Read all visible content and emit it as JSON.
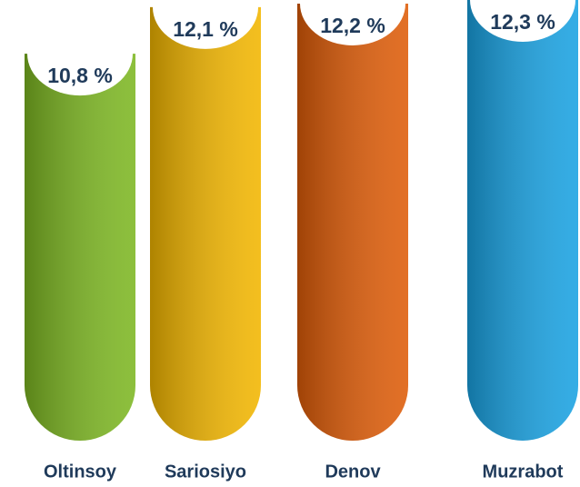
{
  "chart_data": {
    "type": "bar",
    "categories": [
      "Oltinsoy",
      "Sariosiyo",
      "Denov",
      "Muzrabot"
    ],
    "values": [
      10.8,
      12.1,
      12.2,
      12.3
    ],
    "value_labels": [
      "10,8 %",
      "12,1 %",
      "12,2 %",
      "12,3 %"
    ],
    "colors": [
      "#7db722",
      "#f2b600",
      "#de5c08",
      "#19a2e2"
    ]
  }
}
